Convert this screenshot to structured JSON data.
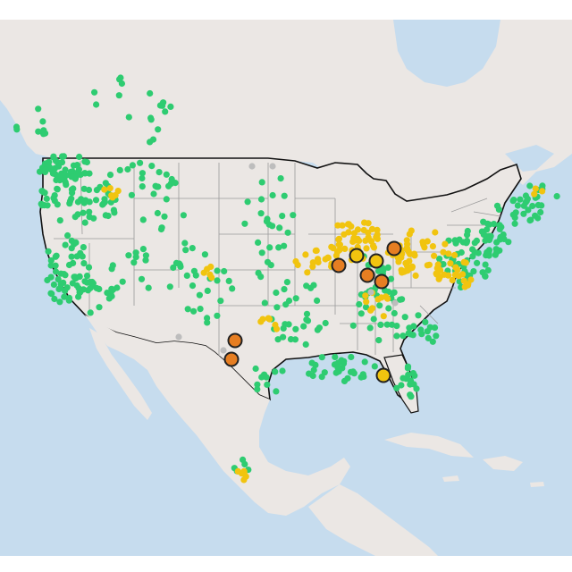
{
  "map": {
    "basemap": "light-gray-canvas",
    "colors": {
      "ocean": "#c6dcee",
      "land": "#ebe7e4",
      "land_alt": "#e4e1de",
      "border": "#111111",
      "state_line": "#9a9a9a",
      "good": "#2ecc71",
      "moderate": "#f1c40f",
      "usg": "#e67e22",
      "unavailable": "#bdbdbd",
      "marker_outline": "#222222"
    },
    "marker_legend": [
      {
        "category": "good",
        "icon": "green-dot"
      },
      {
        "category": "moderate",
        "icon": "yellow-dot"
      },
      {
        "category": "usg",
        "icon": "orange-dot"
      },
      {
        "category": "unavailable",
        "icon": "gray-dot"
      }
    ]
  }
}
